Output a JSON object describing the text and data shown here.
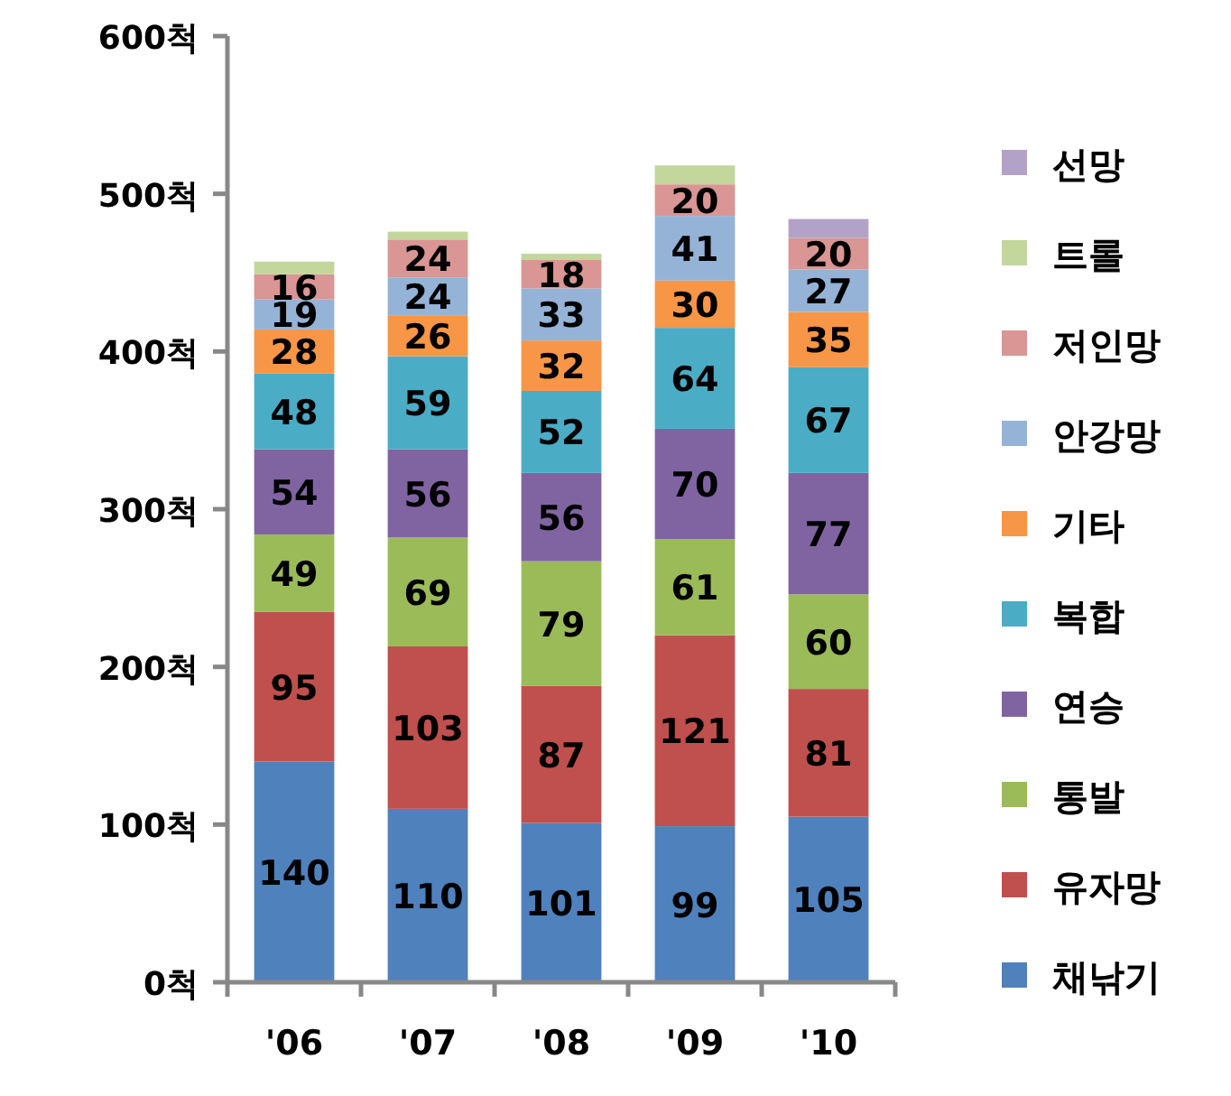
{
  "chart_data": {
    "type": "bar",
    "stacked": true,
    "categories": [
      "'06",
      "'07",
      "'08",
      "'09",
      "'10"
    ],
    "ylim": [
      0,
      600
    ],
    "yticks": [
      {
        "value": 0,
        "label": "0척"
      },
      {
        "value": 100,
        "label": "100척"
      },
      {
        "value": 200,
        "label": "200척"
      },
      {
        "value": 300,
        "label": "300척"
      },
      {
        "value": 400,
        "label": "400척"
      },
      {
        "value": 500,
        "label": "500척"
      },
      {
        "value": 600,
        "label": "600척"
      }
    ],
    "grid": false,
    "legend": "right",
    "series": [
      {
        "name": "채낚기",
        "color": "#4f81bd",
        "values": [
          140,
          110,
          101,
          99,
          105
        ],
        "value_labels": [
          "140",
          "110",
          "101",
          "99",
          "105"
        ]
      },
      {
        "name": "유자망",
        "color": "#c0504d",
        "values": [
          95,
          103,
          87,
          121,
          81
        ],
        "value_labels": [
          "95",
          "103",
          "87",
          "121",
          "81"
        ]
      },
      {
        "name": "통발",
        "color": "#9bbb59",
        "values": [
          49,
          69,
          79,
          61,
          60
        ],
        "value_labels": [
          "49",
          "69",
          "79",
          "61",
          "60"
        ]
      },
      {
        "name": "연승",
        "color": "#8064a2",
        "values": [
          54,
          56,
          56,
          70,
          77
        ],
        "value_labels": [
          "54",
          "56",
          "56",
          "70",
          "77"
        ]
      },
      {
        "name": "복합",
        "color": "#4bacc6",
        "values": [
          48,
          59,
          52,
          64,
          67
        ],
        "value_labels": [
          "48",
          "59",
          "52",
          "64",
          "67"
        ]
      },
      {
        "name": "기타",
        "color": "#f79646",
        "values": [
          28,
          26,
          32,
          30,
          35
        ],
        "value_labels": [
          "28",
          "26",
          "32",
          "30",
          "35"
        ]
      },
      {
        "name": "안강망",
        "color": "#95b3d7",
        "values": [
          19,
          24,
          33,
          41,
          27
        ],
        "value_labels": [
          "19",
          "24",
          "33",
          "41",
          "27"
        ]
      },
      {
        "name": "저인망",
        "color": "#d99694",
        "values": [
          16,
          24,
          18,
          20,
          20
        ],
        "value_labels": [
          "16",
          "24",
          "18",
          "20",
          "20"
        ]
      },
      {
        "name": "트롤",
        "color": "#c3d69b",
        "values": [
          8,
          5,
          4,
          12,
          null
        ],
        "value_labels": [
          null,
          null,
          null,
          null,
          null
        ]
      },
      {
        "name": "선망",
        "color": "#b3a2c7",
        "values": [
          null,
          null,
          null,
          null,
          12
        ],
        "value_labels": [
          null,
          null,
          null,
          null,
          null
        ]
      }
    ]
  }
}
